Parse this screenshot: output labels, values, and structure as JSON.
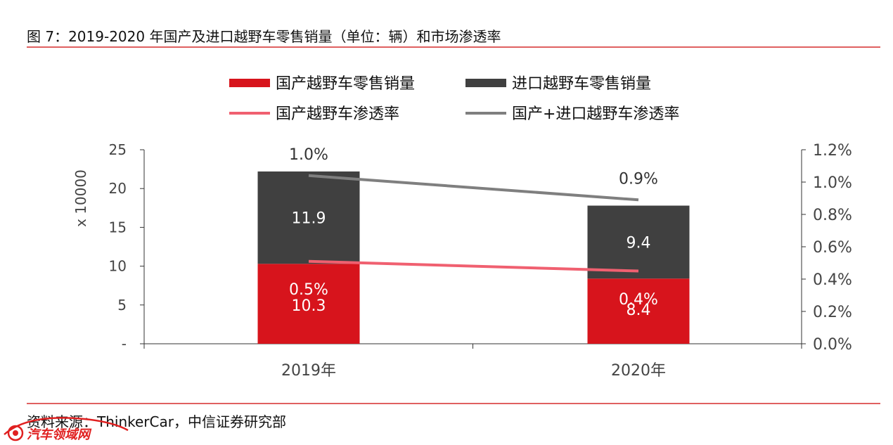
{
  "figure_title": "图 7：2019-2020 年国产及进口越野车零售销量（单位：辆）和市场渗透率",
  "source_note": "资料来源：ThinkerCar，中信证券研究部",
  "watermark_text": "汽车领域网",
  "colors": {
    "domestic_bar": "#d7141c",
    "import_bar": "#404040",
    "domestic_line": "#f06070",
    "total_line": "#7f7f7f",
    "rule": "#e06060"
  },
  "chart_data": {
    "type": "bar",
    "stacked": true,
    "categories": [
      "2019年",
      "2020年"
    ],
    "series": [
      {
        "name": "国产越野车零售销量",
        "kind": "bar",
        "axis": "left",
        "values": [
          10.3,
          8.4
        ],
        "labels": [
          "10.3",
          "8.4"
        ]
      },
      {
        "name": "进口越野车零售销量",
        "kind": "bar",
        "axis": "left",
        "values": [
          11.9,
          9.4
        ],
        "labels": [
          "11.9",
          "9.4"
        ]
      },
      {
        "name": "国产越野车渗透率",
        "kind": "line",
        "axis": "right",
        "values": [
          0.51,
          0.45
        ],
        "labels": [
          "0.5%",
          "0.4%"
        ]
      },
      {
        "name": "国产+进口越野车渗透率",
        "kind": "line",
        "axis": "right",
        "values": [
          1.04,
          0.89
        ],
        "labels": [
          "1.0%",
          "0.9%"
        ]
      }
    ],
    "ylabel": "x 10000",
    "ylim": [
      0,
      25
    ],
    "yticks": [
      "-",
      "5",
      "10",
      "15",
      "20",
      "25"
    ],
    "y2lim": [
      0,
      1.2
    ],
    "y2ticks": [
      "0.0%",
      "0.2%",
      "0.4%",
      "0.6%",
      "0.8%",
      "1.0%",
      "1.2%"
    ],
    "legend_position": "top",
    "grid": false
  }
}
